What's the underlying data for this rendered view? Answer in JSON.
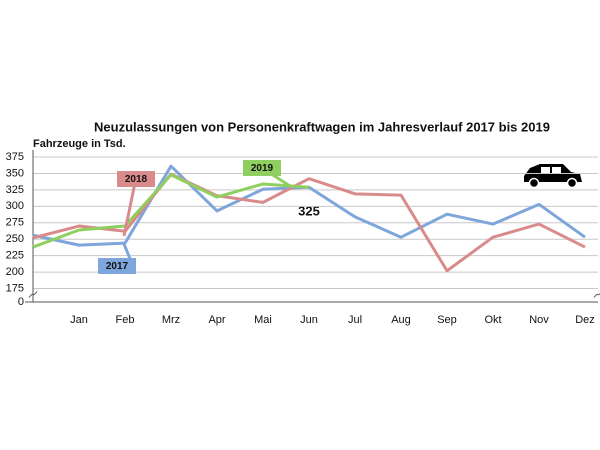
{
  "chart_data": {
    "type": "line",
    "title": "Neuzulassungen von Personenkraftwagen im Jahresverlauf 2017 bis 2019",
    "y_label": "Fahrzeuge in Tsd.",
    "categories": [
      null,
      "Jan",
      "Feb",
      "Mrz",
      "Apr",
      "Mai",
      "Jun",
      "Jul",
      "Aug",
      "Sep",
      "Okt",
      "Nov",
      "Dez"
    ],
    "series": [
      {
        "name": "2017",
        "color": "#7ea6dc",
        "values": [
          256,
          241,
          244,
          361,
          293,
          326,
          329,
          284,
          253,
          288,
          273,
          303,
          253
        ]
      },
      {
        "name": "2018",
        "color": "#d98b8b",
        "values": [
          252,
          270,
          262,
          349,
          316,
          306,
          342,
          319,
          317,
          202,
          253,
          273,
          238
        ]
      },
      {
        "name": "2019",
        "color": "#8fcf5f",
        "values": [
          238,
          264,
          270,
          348,
          314,
          334,
          329,
          null,
          null,
          null,
          null,
          null,
          null
        ]
      }
    ],
    "annotation": "325",
    "ylim": [
      175,
      375
    ],
    "yticks": [
      0,
      175,
      200,
      225,
      250,
      275,
      300,
      325,
      350,
      375
    ],
    "axis_break": true,
    "grid": true
  }
}
